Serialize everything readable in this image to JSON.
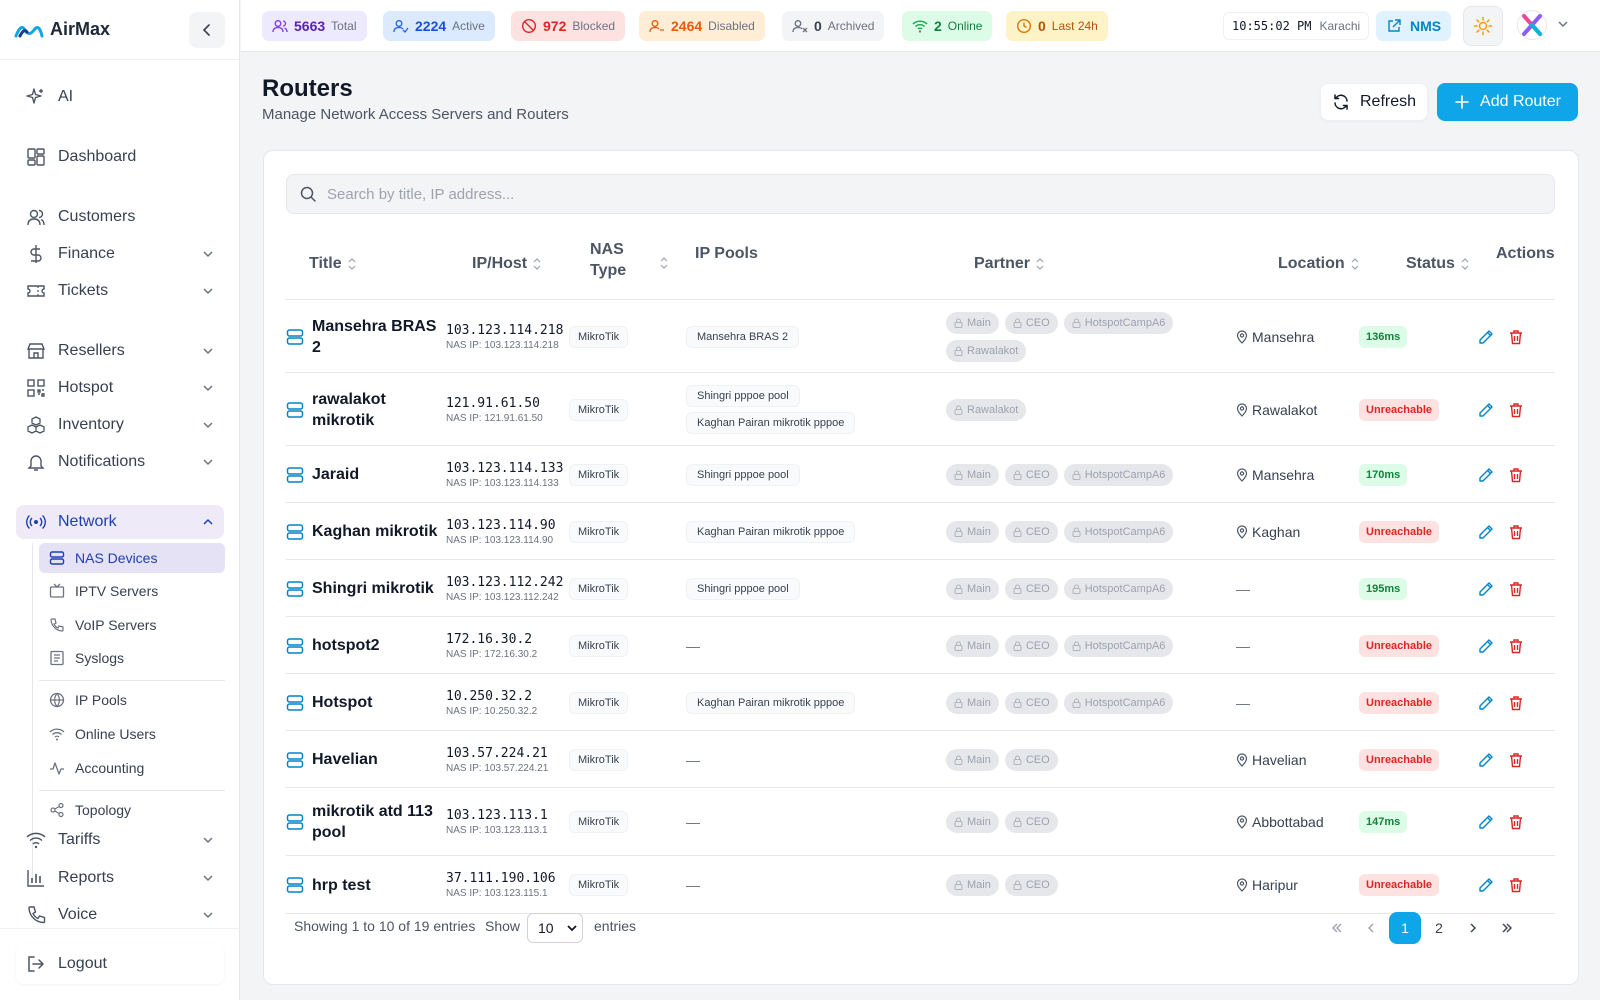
{
  "app": {
    "name": "AirMax"
  },
  "colors": {
    "accent": "#0ea5e9",
    "nav_active": "#1e40af",
    "ok": "#15803d",
    "bad": "#dc2626"
  },
  "topbar": {
    "stats": [
      {
        "value": "5663",
        "label": "Total",
        "icon": "users-icon"
      },
      {
        "value": "2224",
        "label": "Active",
        "icon": "user-check-icon"
      },
      {
        "value": "972",
        "label": "Blocked",
        "icon": "ban-icon"
      },
      {
        "value": "2464",
        "label": "Disabled",
        "icon": "user-minus-icon"
      },
      {
        "value": "0",
        "label": "Archived",
        "icon": "user-x-icon"
      },
      {
        "value": "2",
        "label": "Online",
        "icon": "wifi-icon"
      },
      {
        "value": "0",
        "label": "Last 24h",
        "icon": "clock-icon"
      }
    ],
    "time": "10:55:02 PM",
    "timezone": "Karachi",
    "nms_label": "NMS"
  },
  "sidebar": {
    "items": [
      {
        "label": "AI"
      },
      {
        "label": "Dashboard"
      },
      {
        "label": "Customers"
      },
      {
        "label": "Finance"
      },
      {
        "label": "Tickets"
      },
      {
        "label": "Resellers"
      },
      {
        "label": "Hotspot"
      },
      {
        "label": "Inventory"
      },
      {
        "label": "Notifications"
      },
      {
        "label": "Network"
      },
      {
        "label": "Tariffs"
      },
      {
        "label": "Reports"
      },
      {
        "label": "Voice"
      }
    ],
    "network_sub": [
      {
        "label": "NAS Devices"
      },
      {
        "label": "IPTV Servers"
      },
      {
        "label": "VoIP Servers"
      },
      {
        "label": "Syslogs"
      },
      {
        "label": "IP Pools"
      },
      {
        "label": "Online Users"
      },
      {
        "label": "Accounting"
      },
      {
        "label": "Topology"
      }
    ],
    "logout": "Logout"
  },
  "page": {
    "title": "Routers",
    "subtitle": "Manage Network Access Servers and Routers",
    "refresh": "Refresh",
    "add": "Add Router",
    "search_placeholder": "Search by title, IP address..."
  },
  "table": {
    "headers": {
      "title": "Title",
      "ip": "IP/Host",
      "nas_line1": "NAS",
      "nas_line2": "Type",
      "pools": "IP Pools",
      "partner": "Partner",
      "location": "Location",
      "status": "Status",
      "actions": "Actions"
    },
    "rows": [
      {
        "title": "Mansehra BRAS 2",
        "ip": "103.123.114.218",
        "nas_ip": "NAS IP: 103.123.114.218",
        "type": "MikroTik",
        "pools": [
          "Mansehra BRAS 2"
        ],
        "partners": [
          "Main",
          "CEO",
          "HotspotCampA6",
          "Rawalakot"
        ],
        "location": "Mansehra",
        "status": "136ms",
        "status_kind": "ok"
      },
      {
        "title": "rawalakot mikrotik",
        "ip": "121.91.61.50",
        "nas_ip": "NAS IP: 121.91.61.50",
        "type": "MikroTik",
        "pools": [
          "Shingri pppoe pool",
          "Kaghan Pairan mikrotik pppoe"
        ],
        "partners": [
          "Rawalakot"
        ],
        "location": "Rawalakot",
        "status": "Unreachable",
        "status_kind": "bad"
      },
      {
        "title": "Jaraid",
        "ip": "103.123.114.133",
        "nas_ip": "NAS IP: 103.123.114.133",
        "type": "MikroTik",
        "pools": [
          "Shingri pppoe pool"
        ],
        "partners": [
          "Main",
          "CEO",
          "HotspotCampA6"
        ],
        "location": "Mansehra",
        "status": "170ms",
        "status_kind": "ok"
      },
      {
        "title": "Kaghan mikrotik",
        "ip": "103.123.114.90",
        "nas_ip": "NAS IP: 103.123.114.90",
        "type": "MikroTik",
        "pools": [
          "Kaghan Pairan mikrotik pppoe"
        ],
        "partners": [
          "Main",
          "CEO",
          "HotspotCampA6"
        ],
        "location": "Kaghan",
        "status": "Unreachable",
        "status_kind": "bad"
      },
      {
        "title": "Shingri mikrotik",
        "ip": "103.123.112.242",
        "nas_ip": "NAS IP: 103.123.112.242",
        "type": "MikroTik",
        "pools": [
          "Shingri pppoe pool"
        ],
        "partners": [
          "Main",
          "CEO",
          "HotspotCampA6"
        ],
        "location": "—",
        "status": "195ms",
        "status_kind": "ok"
      },
      {
        "title": "hotspot2",
        "ip": "172.16.30.2",
        "nas_ip": "NAS IP: 172.16.30.2",
        "type": "MikroTik",
        "pools": [
          "—"
        ],
        "partners": [
          "Main",
          "CEO",
          "HotspotCampA6"
        ],
        "location": "—",
        "status": "Unreachable",
        "status_kind": "bad"
      },
      {
        "title": "Hotspot",
        "ip": "10.250.32.2",
        "nas_ip": "NAS IP: 10.250.32.2",
        "type": "MikroTik",
        "pools": [
          "Kaghan Pairan mikrotik pppoe"
        ],
        "partners": [
          "Main",
          "CEO",
          "HotspotCampA6"
        ],
        "location": "—",
        "status": "Unreachable",
        "status_kind": "bad"
      },
      {
        "title": "Havelian",
        "ip": "103.57.224.21",
        "nas_ip": "NAS IP: 103.57.224.21",
        "type": "MikroTik",
        "pools": [
          "—"
        ],
        "partners": [
          "Main",
          "CEO"
        ],
        "location": "Havelian",
        "status": "Unreachable",
        "status_kind": "bad"
      },
      {
        "title": "mikrotik atd 113 pool",
        "ip": "103.123.113.1",
        "nas_ip": "NAS IP: 103.123.113.1",
        "type": "MikroTik",
        "pools": [
          "—"
        ],
        "partners": [
          "Main",
          "CEO"
        ],
        "location": "Abbottabad",
        "status": "147ms",
        "status_kind": "ok"
      },
      {
        "title": "hrp test",
        "ip": "37.111.190.106",
        "nas_ip": "NAS IP: 103.123.115.1",
        "type": "MikroTik",
        "pools": [
          "—"
        ],
        "partners": [
          "Main",
          "CEO"
        ],
        "location": "Haripur",
        "status": "Unreachable",
        "status_kind": "bad"
      }
    ]
  },
  "footer": {
    "showing": "Showing 1 to 10 of 19 entries",
    "show": "Show",
    "page_size": "10",
    "entries": "entries",
    "pages": [
      "1",
      "2"
    ],
    "current_page": "1"
  }
}
